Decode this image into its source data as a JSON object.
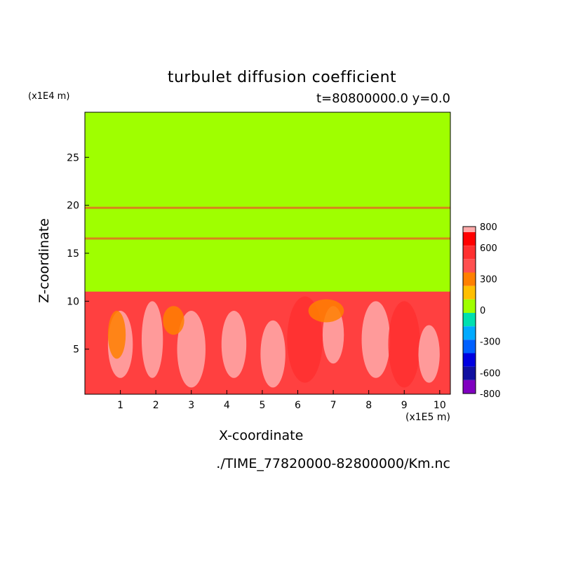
{
  "chart_data": {
    "type": "heatmap",
    "title": "turbulet diffusion coefficient",
    "subtitle": "t=80800000.0 y=0.0",
    "xlabel": "X-coordinate",
    "ylabel": "Z-coordinate",
    "x_unit": "(x1E5 m)",
    "z_unit": "(x1E4 m)",
    "xlim": [
      0,
      10.3
    ],
    "ylim": [
      0.3,
      29.7
    ],
    "x_ticks": [
      "1",
      "2",
      "3",
      "4",
      "5",
      "6",
      "7",
      "8",
      "9",
      "10"
    ],
    "y_ticks": [
      "5",
      "10",
      "15",
      "20",
      "25"
    ],
    "y_tick_values": [
      5,
      10,
      15,
      20,
      25
    ],
    "colorbar": {
      "levels": [
        "800",
        "600",
        "300",
        "0",
        "-300",
        "-600",
        "-800"
      ],
      "level_values": [
        800,
        600,
        300,
        0,
        -300,
        -600,
        -800
      ],
      "colors": [
        "#ff0000",
        "#ff3030",
        "#ff5050",
        "#ff8000",
        "#ffbf00",
        "#9fff00",
        "#00e0b0",
        "#00aaff",
        "#0060ff",
        "#0000e0",
        "#1010a0",
        "#8000c0"
      ],
      "top_color": "#ffaaaa"
    },
    "field": {
      "background_upper": "#9fff00",
      "background_lower": "#ff4040",
      "boundary_layer_top": 11,
      "bands": [
        {
          "z": 16.5,
          "color": "#ff3030"
        },
        {
          "z": 19.7,
          "color": "#ff3030"
        }
      ]
    },
    "source": "./TIME_77820000-82800000/Km.nc"
  }
}
